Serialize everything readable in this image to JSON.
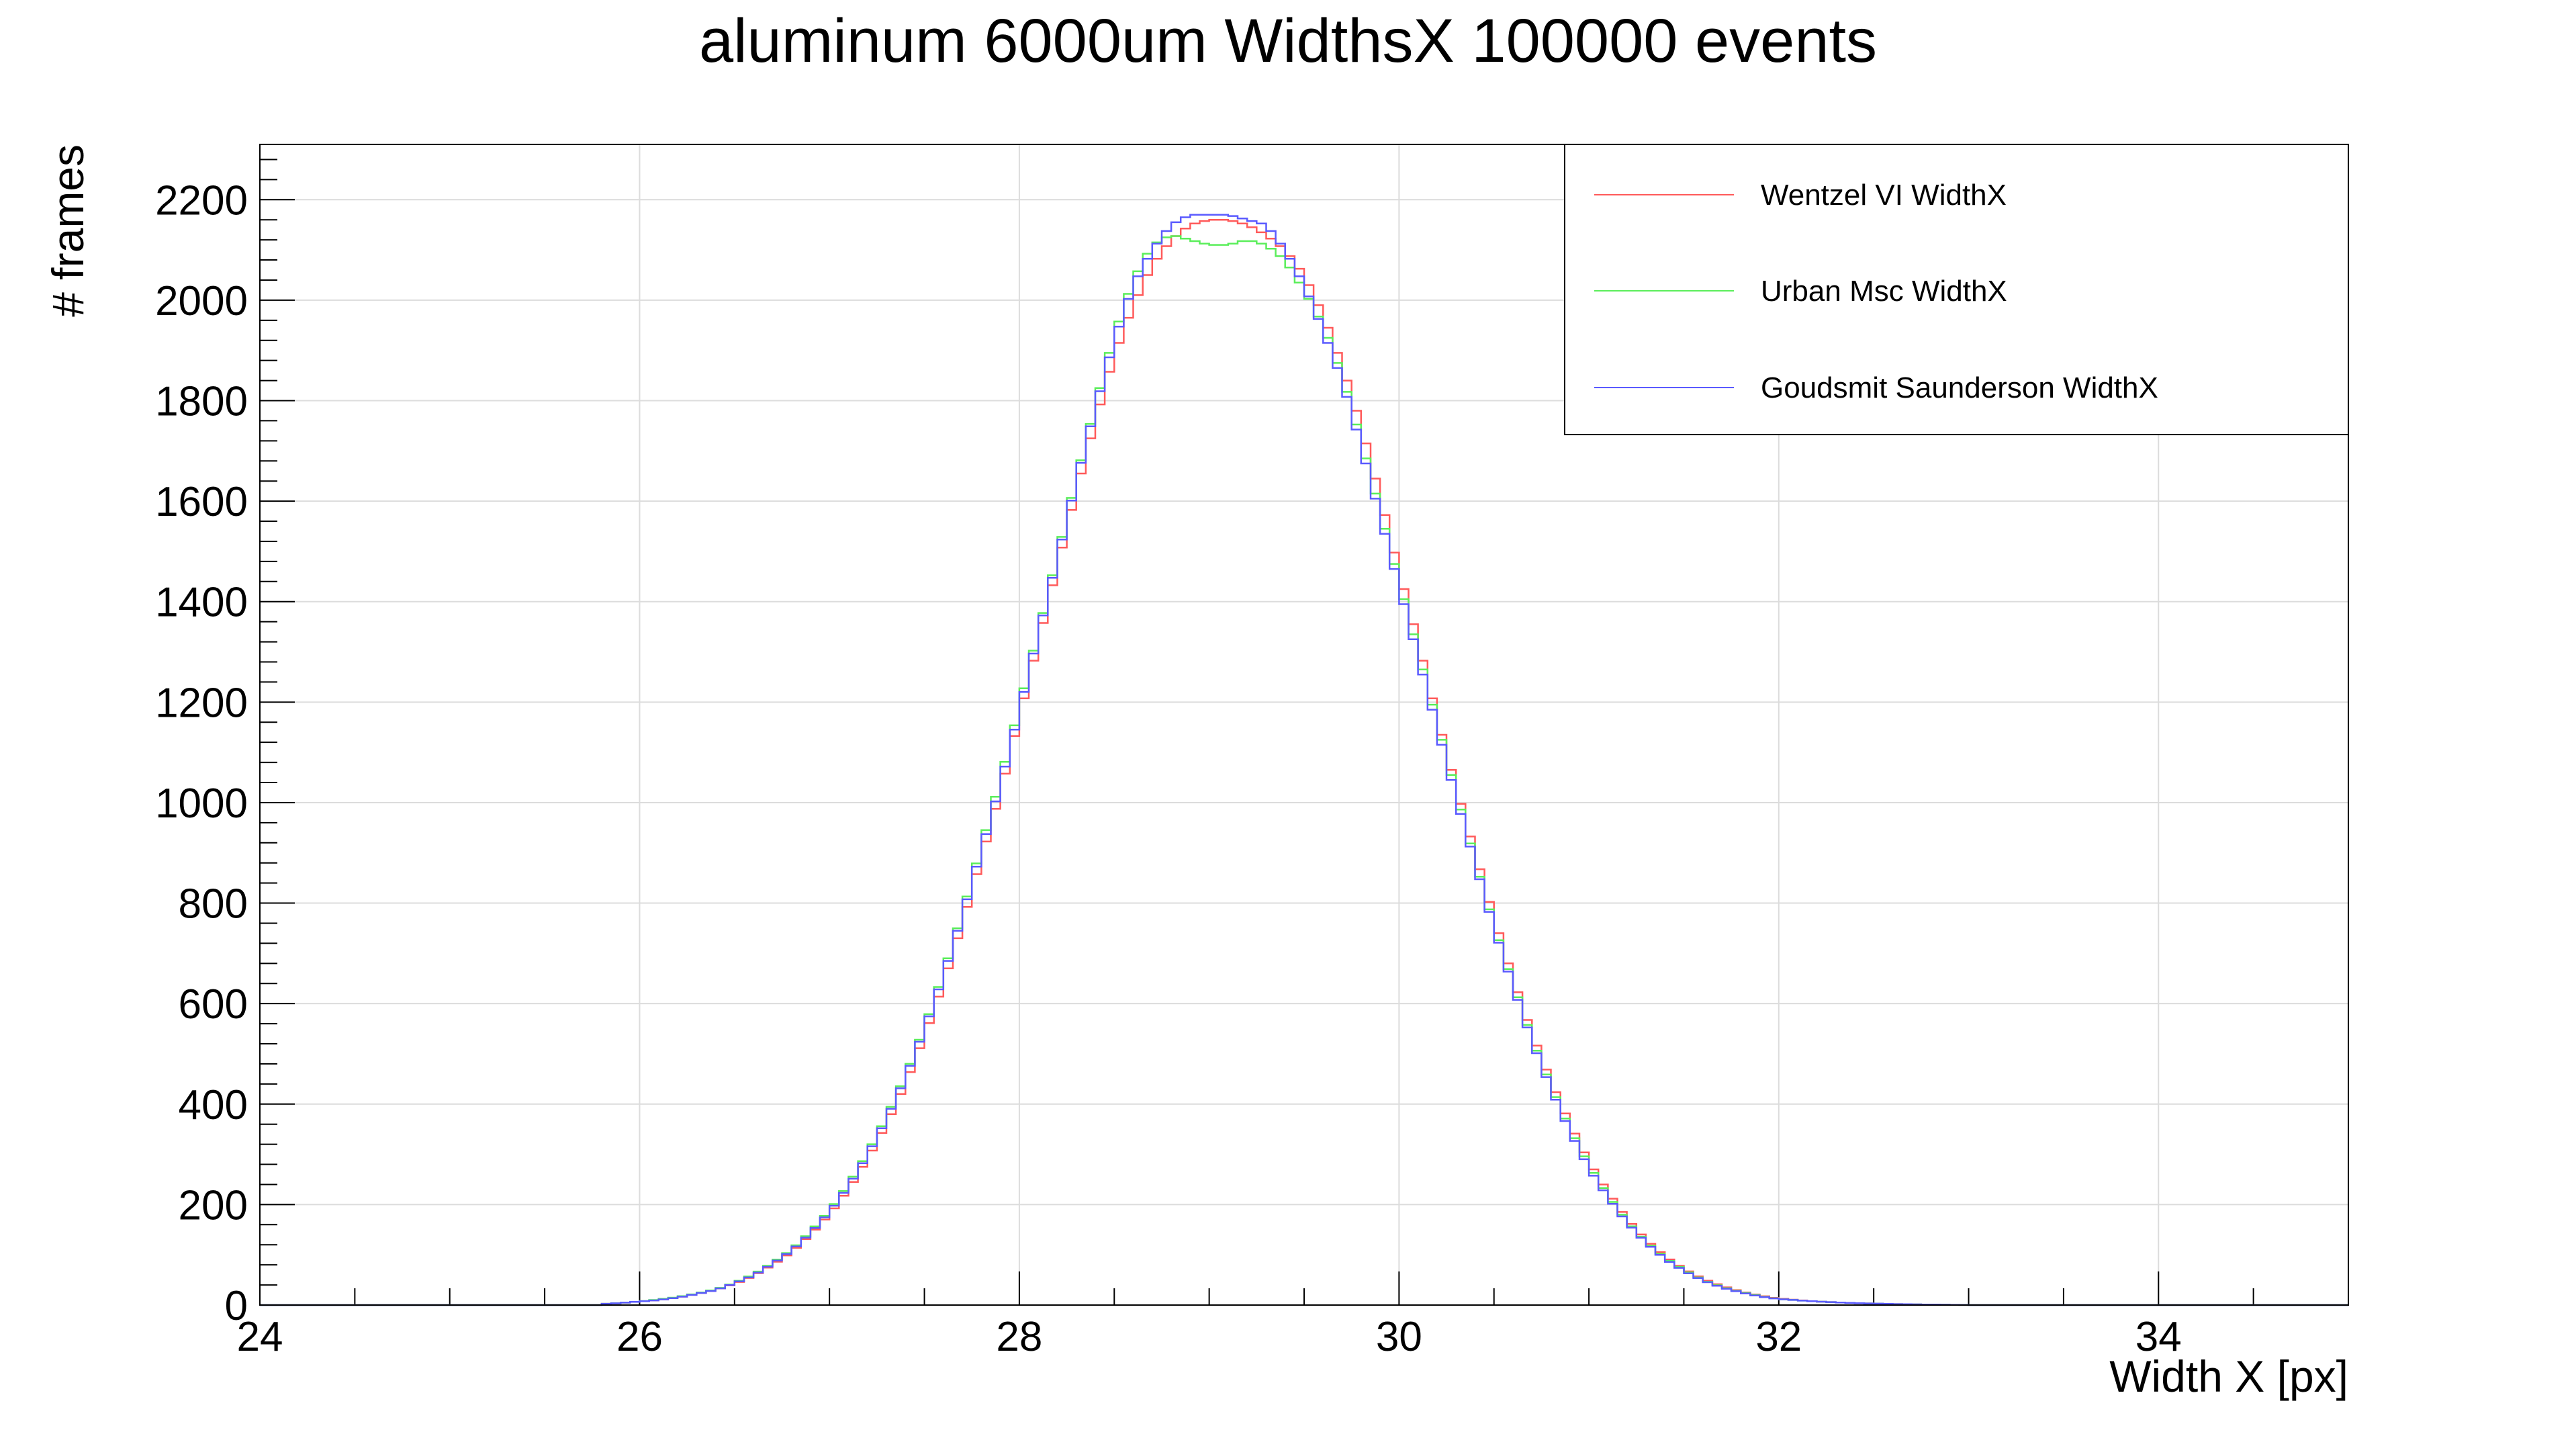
{
  "chart_data": {
    "type": "line",
    "title": "aluminum 6000um WidthsX 100000 events",
    "xlabel": "Width X [px]",
    "ylabel": "# frames",
    "xlim": [
      24,
      35
    ],
    "ylim": [
      0,
      2310
    ],
    "x_ticks": [
      "24",
      "26",
      "28",
      "30",
      "32",
      "34"
    ],
    "y_ticks": [
      "0",
      "200",
      "400",
      "600",
      "800",
      "1000",
      "1200",
      "1400",
      "1600",
      "1800",
      "2000",
      "2200"
    ],
    "grid": true,
    "legend_position": "top-right",
    "bin_width": 0.05,
    "x": [
      25.8,
      25.9,
      26.0,
      26.1,
      26.2,
      26.3,
      26.4,
      26.5,
      26.6,
      26.7,
      26.8,
      26.9,
      27.0,
      27.1,
      27.2,
      27.3,
      27.4,
      27.5,
      27.6,
      27.7,
      27.8,
      27.9,
      28.0,
      28.1,
      28.2,
      28.3,
      28.4,
      28.5,
      28.6,
      28.7,
      28.8,
      28.9,
      29.0,
      29.1,
      29.2,
      29.3,
      29.4,
      29.5,
      29.6,
      29.7,
      29.8,
      29.9,
      30.0,
      30.1,
      30.2,
      30.3,
      30.4,
      30.5,
      30.6,
      30.7,
      30.8,
      30.9,
      31.0,
      31.1,
      31.2,
      31.3,
      31.4,
      31.5,
      31.6,
      31.7,
      31.8,
      31.9,
      32.0,
      32.2,
      32.4,
      32.6,
      32.8,
      33.0
    ],
    "series": [
      {
        "name": "Wentzel VI WidthX",
        "color": "#ff5a5a",
        "values": [
          2,
          4,
          7,
          10,
          15,
          22,
          30,
          42,
          58,
          80,
          105,
          140,
          180,
          230,
          290,
          360,
          440,
          535,
          640,
          760,
          890,
          1020,
          1170,
          1320,
          1470,
          1620,
          1760,
          1890,
          1990,
          2070,
          2120,
          2150,
          2160,
          2160,
          2150,
          2130,
          2100,
          2050,
          1970,
          1870,
          1750,
          1610,
          1460,
          1320,
          1170,
          1030,
          900,
          770,
          650,
          540,
          445,
          360,
          285,
          225,
          172,
          130,
          97,
          72,
          52,
          38,
          27,
          19,
          13,
          7,
          4,
          2,
          1,
          0
        ]
      },
      {
        "name": "Urban Msc WidthX",
        "color": "#5aee5a",
        "values": [
          2,
          4,
          7,
          11,
          16,
          23,
          31,
          44,
          61,
          84,
          110,
          146,
          188,
          240,
          302,
          374,
          456,
          552,
          660,
          780,
          912,
          1045,
          1190,
          1340,
          1490,
          1645,
          1790,
          1930,
          2040,
          2110,
          2130,
          2120,
          2110,
          2110,
          2120,
          2110,
          2080,
          2020,
          1950,
          1850,
          1720,
          1580,
          1440,
          1300,
          1160,
          1020,
          885,
          755,
          640,
          530,
          435,
          350,
          278,
          218,
          167,
          126,
          94,
          70,
          50,
          36,
          26,
          18,
          12,
          7,
          4,
          2,
          1,
          0
        ]
      },
      {
        "name": "Goudsmit Saunderson WidthX",
        "color": "#5a5aff",
        "values": [
          2,
          4,
          7,
          10,
          15,
          22,
          30,
          43,
          59,
          82,
          108,
          143,
          185,
          236,
          298,
          370,
          452,
          548,
          655,
          775,
          905,
          1035,
          1182,
          1335,
          1485,
          1640,
          1785,
          1920,
          2030,
          2100,
          2150,
          2170,
          2170,
          2170,
          2160,
          2150,
          2100,
          2030,
          1940,
          1840,
          1710,
          1570,
          1430,
          1290,
          1150,
          1010,
          880,
          750,
          635,
          525,
          430,
          345,
          272,
          214,
          164,
          124,
          92,
          68,
          49,
          35,
          25,
          17,
          12,
          7,
          4,
          2,
          1,
          0
        ]
      }
    ]
  }
}
